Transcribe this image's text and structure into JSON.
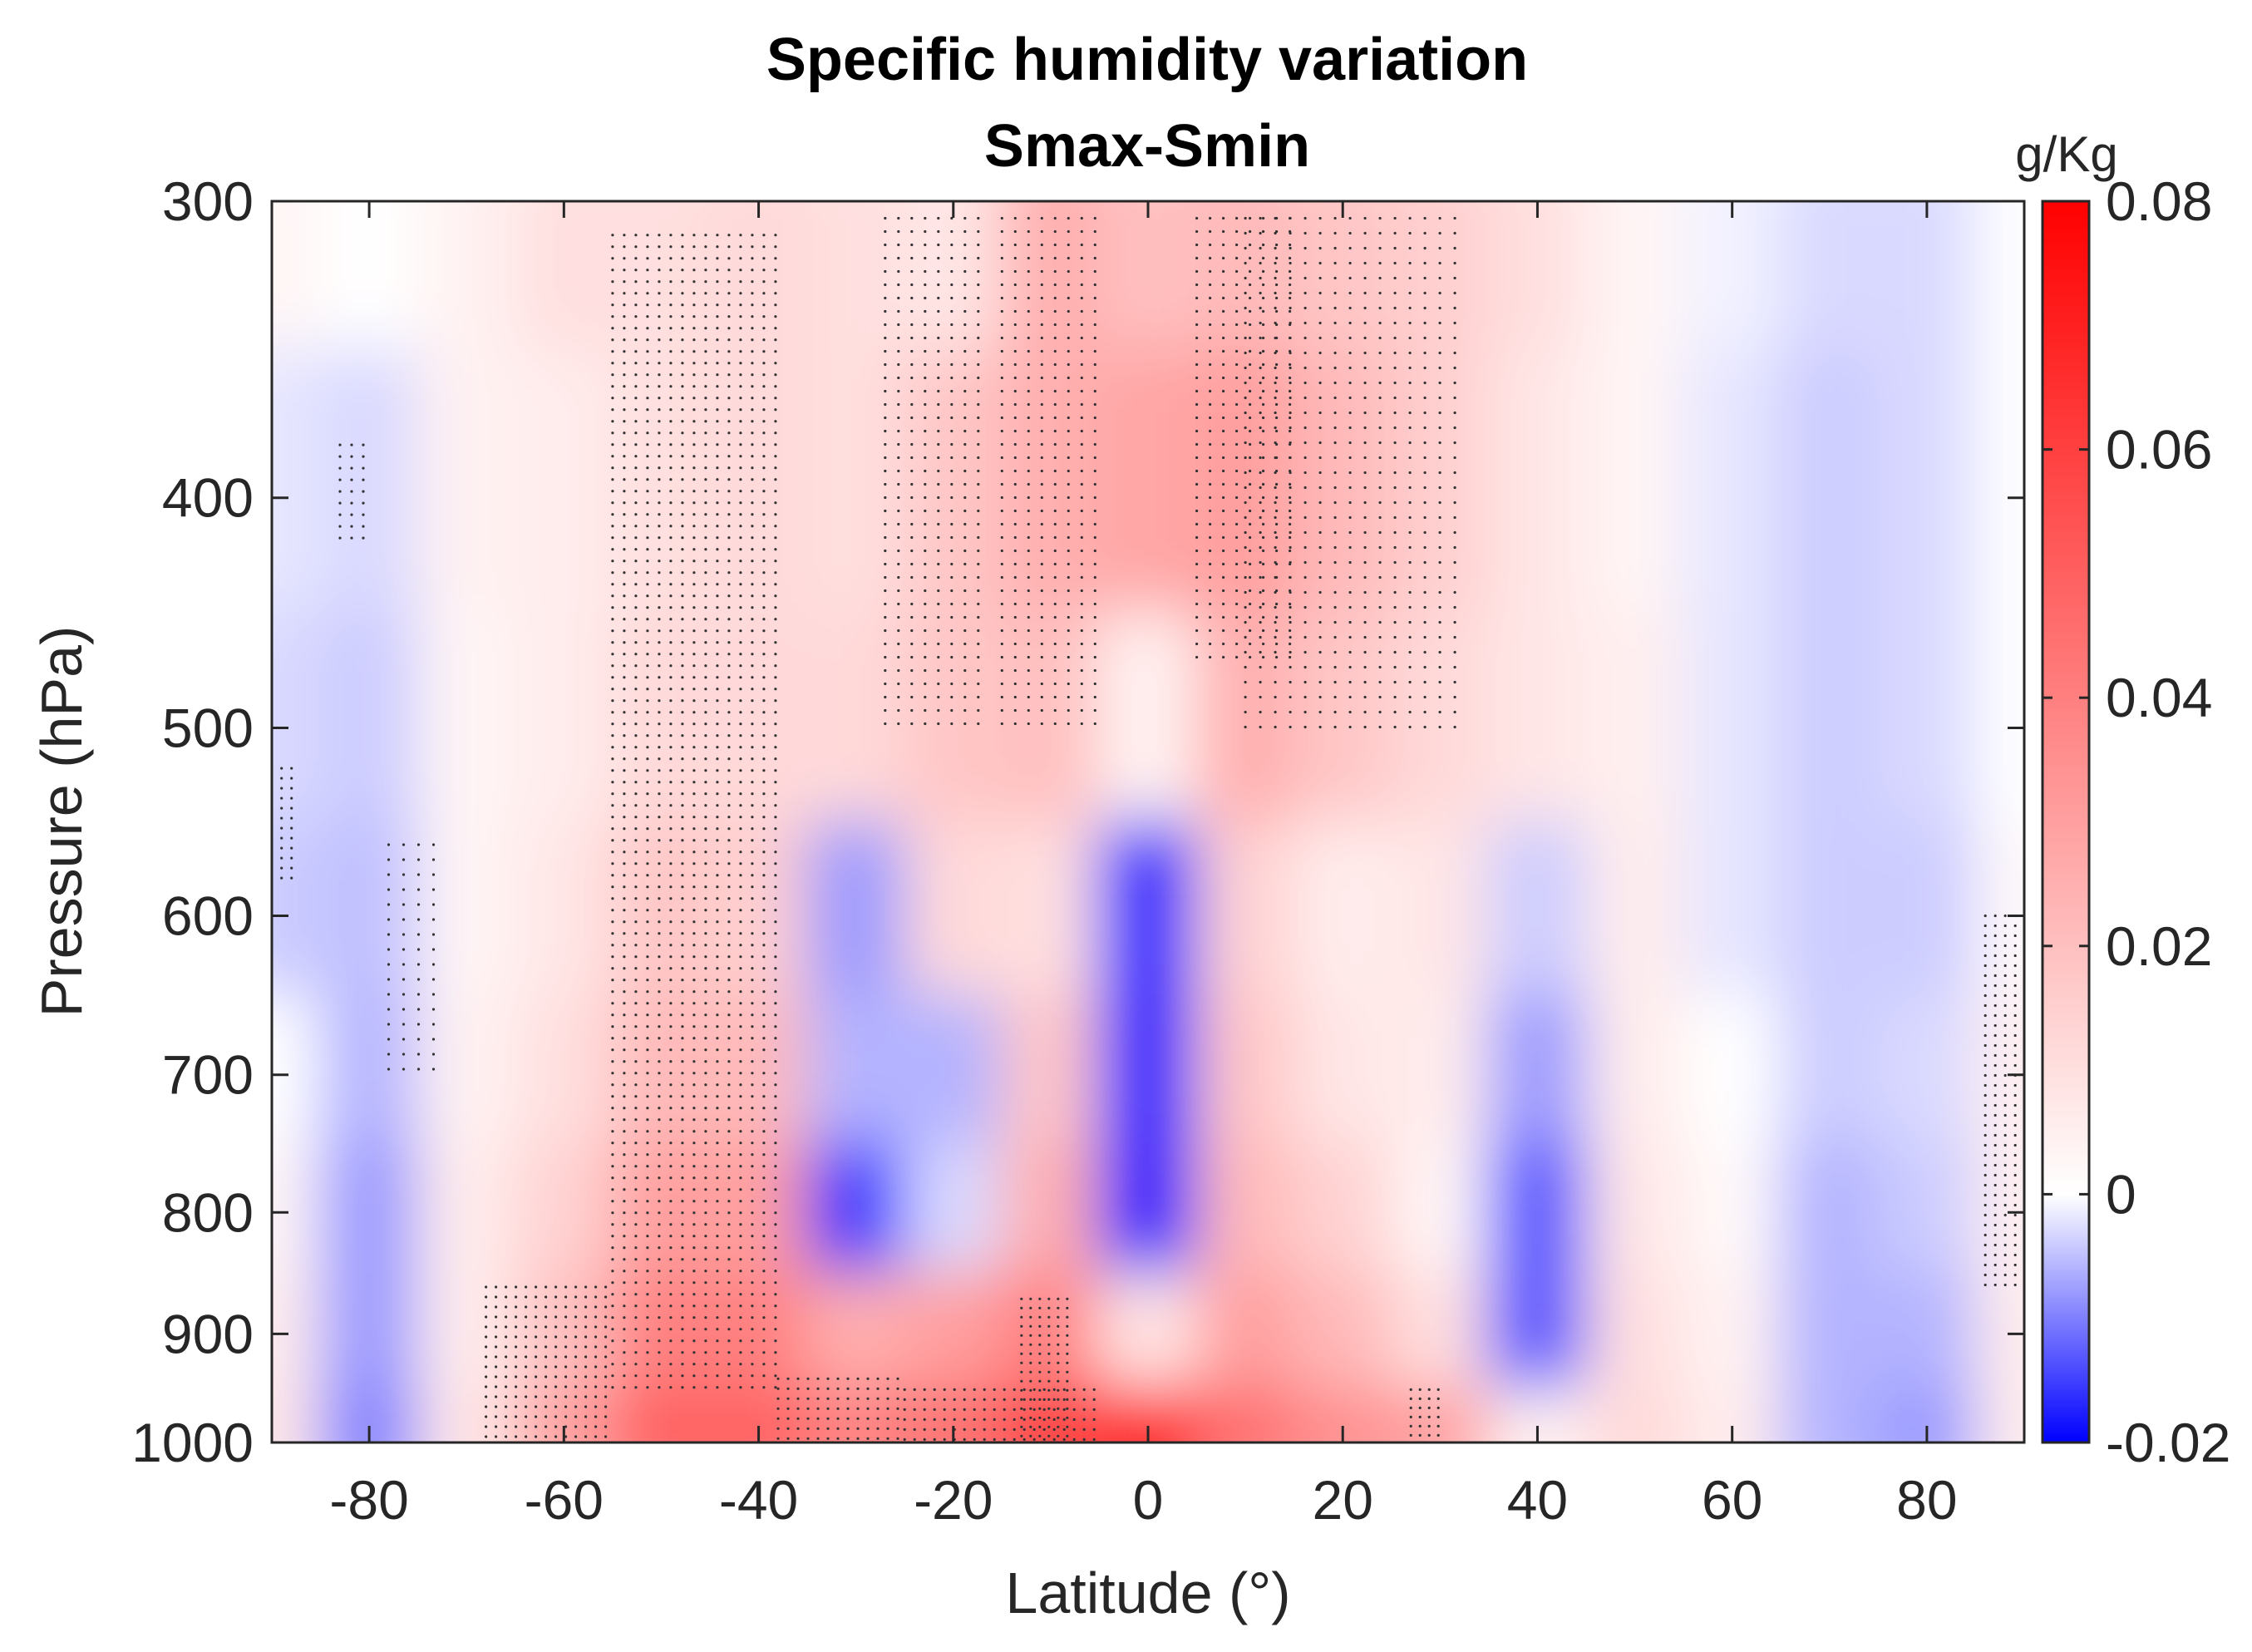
{
  "chart_data": {
    "type": "heatmap",
    "title": "Specific humidity variation",
    "subtitle": "Smax-Smin",
    "xlabel": "Latitude (°)",
    "ylabel": "Pressure (hPa)",
    "xlim": [
      -90,
      90
    ],
    "ylim": [
      300,
      1000
    ],
    "y_scale": "log",
    "y_direction": "reverse",
    "x_ticks": [
      -80,
      -60,
      -40,
      -20,
      0,
      20,
      40,
      60,
      80
    ],
    "x_tick_labels": [
      "-80",
      "-60",
      "-40",
      "-20",
      "0",
      "20",
      "40",
      "60",
      "80"
    ],
    "y_ticks": [
      300,
      400,
      500,
      600,
      700,
      800,
      900,
      1000
    ],
    "y_tick_labels": [
      "300",
      "400",
      "500",
      "600",
      "700",
      "800",
      "900",
      "1000"
    ],
    "colorbar": {
      "label": "g/Kg",
      "range": [
        -0.02,
        0.08
      ],
      "ticks": [
        0.08,
        0.06,
        0.04,
        0.02,
        0,
        -0.02
      ],
      "tick_labels": [
        "0.08",
        "0.06",
        "0.04",
        "0.02",
        "0",
        "-0.02"
      ],
      "colors": {
        "min": "#0000ff",
        "zero": "#ffffff",
        "max": "#ff0000"
      }
    },
    "stippling": "dotted hatching marks statistically significant regions",
    "latitudes": [
      -90,
      -80,
      -70,
      -60,
      -50,
      -40,
      -30,
      -20,
      -10,
      0,
      10,
      20,
      30,
      40,
      50,
      60,
      70,
      80,
      90
    ],
    "pressures": [
      300,
      400,
      500,
      600,
      700,
      800,
      900,
      1000
    ],
    "values": [
      [
        0.003,
        0.0,
        0.004,
        0.01,
        0.01,
        0.012,
        0.01,
        0.008,
        0.025,
        0.02,
        0.022,
        0.018,
        0.015,
        0.01,
        0.003,
        -0.001,
        -0.003,
        -0.003,
        0.0
      ],
      [
        -0.002,
        -0.003,
        0.004,
        0.006,
        0.01,
        0.012,
        0.01,
        0.018,
        0.025,
        0.028,
        0.03,
        0.022,
        0.015,
        0.008,
        0.003,
        -0.002,
        -0.004,
        -0.003,
        0.0
      ],
      [
        -0.003,
        -0.004,
        0.003,
        0.006,
        0.012,
        0.012,
        0.012,
        0.018,
        0.02,
        0.004,
        0.025,
        0.018,
        0.012,
        0.008,
        0.005,
        -0.002,
        -0.004,
        -0.003,
        0.0
      ],
      [
        -0.004,
        -0.005,
        0.003,
        0.008,
        0.018,
        0.015,
        -0.008,
        0.012,
        0.01,
        -0.02,
        0.014,
        0.006,
        0.008,
        -0.004,
        0.006,
        -0.002,
        -0.004,
        -0.004,
        0.002
      ],
      [
        0.0,
        -0.006,
        0.004,
        0.01,
        0.022,
        0.022,
        -0.006,
        -0.006,
        0.018,
        -0.02,
        0.018,
        0.008,
        0.006,
        -0.008,
        0.006,
        0.0,
        -0.004,
        -0.003,
        0.005
      ],
      [
        0.003,
        -0.008,
        0.006,
        0.014,
        0.03,
        0.03,
        -0.016,
        -0.003,
        0.025,
        -0.02,
        0.022,
        0.014,
        0.003,
        -0.014,
        0.008,
        0.002,
        -0.006,
        -0.004,
        0.005
      ],
      [
        0.006,
        -0.008,
        0.006,
        0.02,
        0.04,
        0.04,
        0.025,
        0.03,
        0.04,
        0.008,
        0.03,
        0.022,
        0.01,
        -0.014,
        0.01,
        0.004,
        -0.006,
        -0.006,
        0.006
      ],
      [
        0.008,
        -0.01,
        0.008,
        0.03,
        0.05,
        0.05,
        0.04,
        0.045,
        0.06,
        0.075,
        0.045,
        0.035,
        0.03,
        0.004,
        0.012,
        0.006,
        -0.006,
        -0.008,
        0.006
      ]
    ]
  }
}
